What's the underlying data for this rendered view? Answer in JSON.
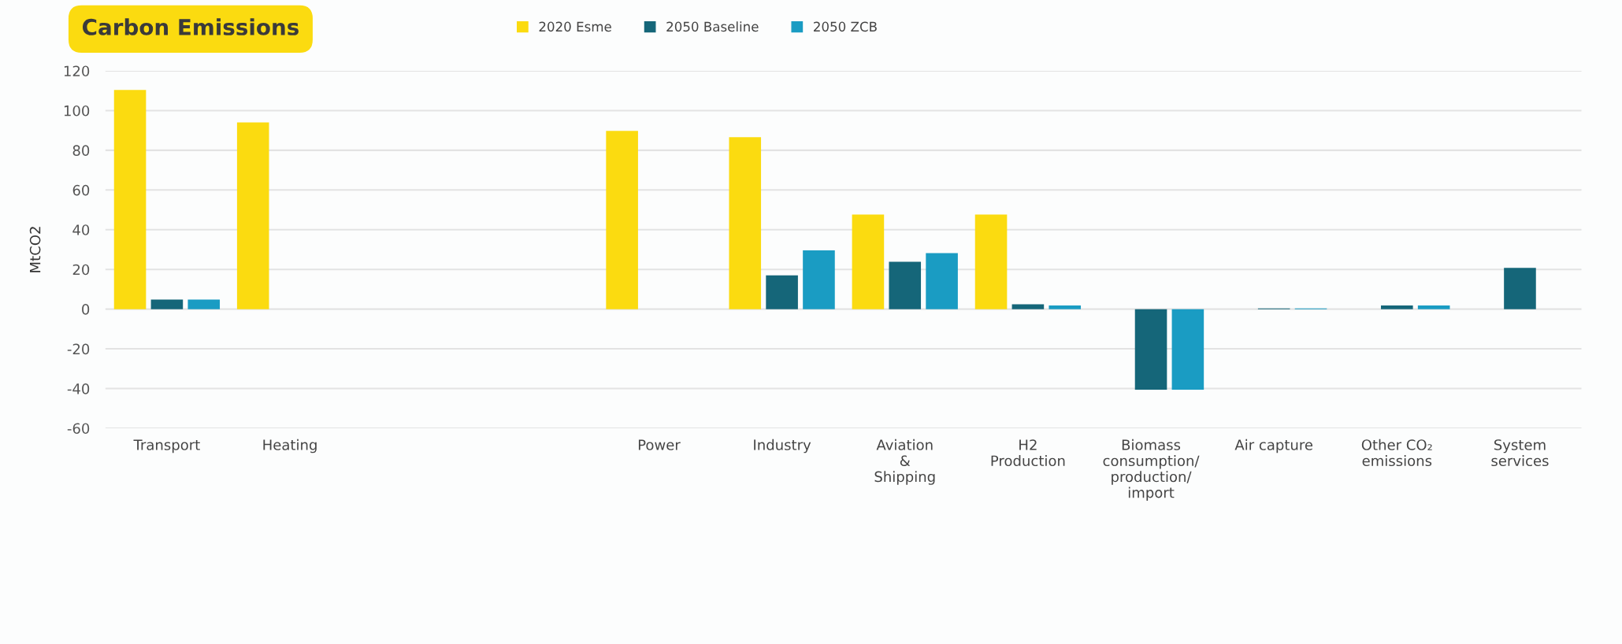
{
  "chart_data": {
    "type": "bar",
    "title": "Carbon Emissions",
    "ylabel": "MtCO2",
    "categories": [
      "Transport",
      "Heating",
      null,
      null,
      "Power",
      "Industry",
      "Aviation\n&\nShipping",
      "H2\nProduction",
      "Biomass\nconsumption/\nproduction/\nimport",
      "Air capture",
      "Other CO₂\nemissions",
      "System\nservices"
    ],
    "series": [
      {
        "name": "2020 Esme",
        "color": "#fbdb10",
        "values": [
          110.4,
          94,
          null,
          null,
          89.8,
          86.6,
          47.6,
          47.6,
          null,
          null,
          null,
          null
        ]
      },
      {
        "name": "2050 Baseline",
        "color": "#156679",
        "values": [
          4.8,
          null,
          null,
          null,
          null,
          17,
          23.8,
          2.4,
          -40.6,
          0.4,
          1.8,
          20.8
        ]
      },
      {
        "name": "2050 ZCB",
        "color": "#1a9cc3",
        "values": [
          4.8,
          null,
          null,
          null,
          null,
          29.6,
          28.2,
          1.8,
          -40.6,
          0.4,
          1.8,
          null
        ]
      }
    ],
    "ylim": [
      -60,
      120
    ],
    "yticks": [
      -60,
      -40,
      -20,
      0,
      20,
      40,
      60,
      80,
      100,
      120
    ],
    "grid": "y",
    "legend": "top"
  }
}
